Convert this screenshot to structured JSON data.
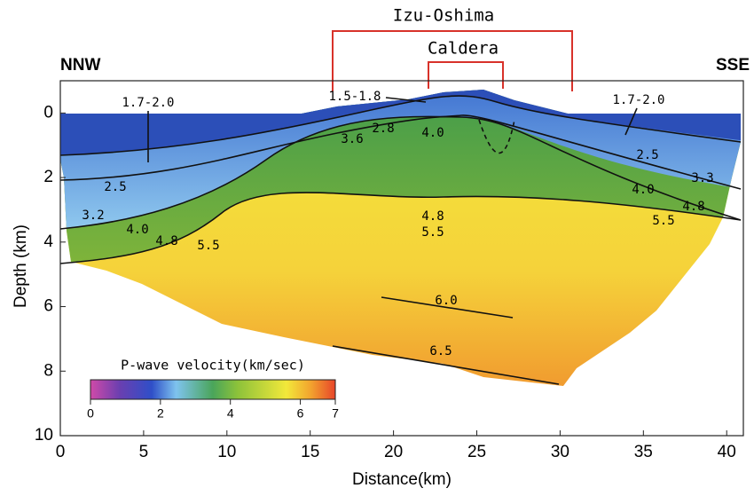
{
  "chart_data": {
    "type": "contour",
    "title": "Izu-Oshima",
    "subtitle": "Caldera",
    "left_label": "NNW",
    "right_label": "SSE",
    "xlabel": "Distance(km)",
    "ylabel": "Depth (km)",
    "xlim": [
      0,
      41
    ],
    "ylim": [
      10,
      -1
    ],
    "xticks": [
      0,
      5,
      10,
      15,
      20,
      25,
      30,
      35,
      40
    ],
    "yticks": [
      0,
      2,
      4,
      6,
      8,
      10
    ],
    "contour_labels": [
      "1.7-2.0",
      "1.5-1.8",
      "1.7-2.0",
      "2.8",
      "3.6",
      "4.0",
      "2.5",
      "2.5",
      "3.3",
      "3.2",
      "4.0",
      "4.0",
      "4.8",
      "4.8",
      "4.8",
      "5.5",
      "5.5",
      "5.5",
      "6.0",
      "6.5"
    ],
    "colorbar": {
      "label": "P-wave velocity(km/sec)",
      "lim": [
        0,
        7
      ],
      "ticks": [
        0,
        2,
        4,
        6,
        7
      ]
    }
  }
}
